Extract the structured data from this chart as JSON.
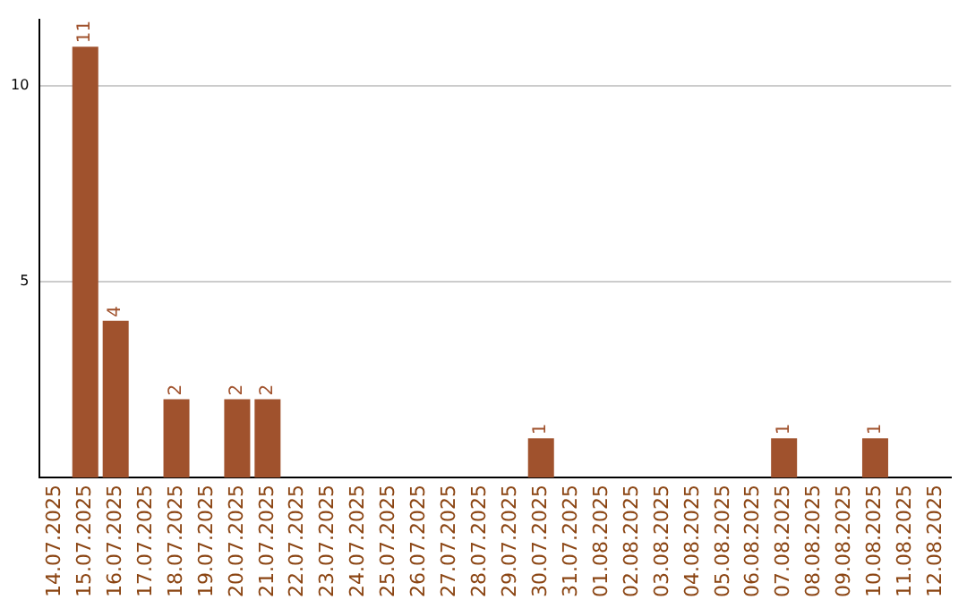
{
  "chart_data": {
    "type": "bar",
    "categories": [
      "14.07.2025",
      "15.07.2025",
      "16.07.2025",
      "17.07.2025",
      "18.07.2025",
      "19.07.2025",
      "20.07.2025",
      "21.07.2025",
      "22.07.2025",
      "23.07.2025",
      "24.07.2025",
      "25.07.2025",
      "26.07.2025",
      "27.07.2025",
      "28.07.2025",
      "29.07.2025",
      "30.07.2025",
      "31.07.2025",
      "01.08.2025",
      "02.08.2025",
      "03.08.2025",
      "04.08.2025",
      "05.08.2025",
      "06.08.2025",
      "07.08.2025",
      "08.08.2025",
      "09.08.2025",
      "10.08.2025",
      "11.08.2025",
      "12.08.2025"
    ],
    "values": [
      0,
      11,
      4,
      0,
      2,
      0,
      2,
      2,
      0,
      0,
      0,
      0,
      0,
      0,
      0,
      0,
      1,
      0,
      0,
      0,
      0,
      0,
      0,
      0,
      1,
      0,
      0,
      1,
      0,
      0
    ],
    "value_labels": [
      null,
      "11",
      "4",
      null,
      "2",
      null,
      "2",
      "2",
      null,
      null,
      null,
      null,
      null,
      null,
      null,
      null,
      "1",
      null,
      null,
      null,
      null,
      null,
      null,
      null,
      "1",
      null,
      null,
      "1",
      null,
      null
    ],
    "color": "#a0522d",
    "ylim": [
      0,
      11.7
    ],
    "yticks": [
      5,
      10
    ],
    "grid": "y",
    "legend": false
  }
}
